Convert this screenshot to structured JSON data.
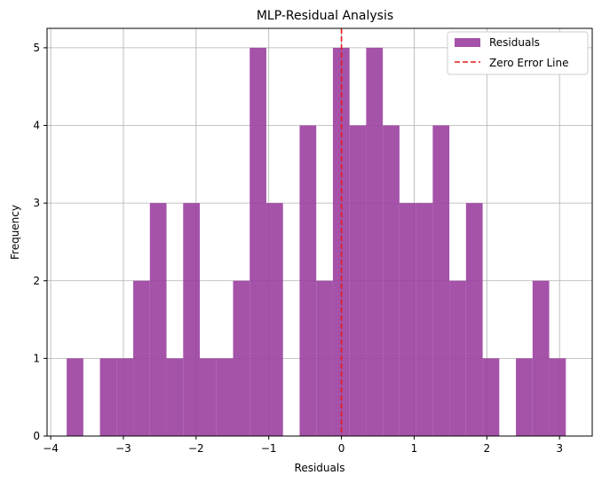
{
  "chart_data": {
    "type": "bar",
    "title": "MLP-Residual Analysis",
    "xlabel": "Residuals",
    "ylabel": "Frequency",
    "xlim": [
      -4.05,
      3.45
    ],
    "ylim": [
      0,
      5.25
    ],
    "xticks": [
      -4,
      -3,
      -2,
      -1,
      0,
      1,
      2,
      3
    ],
    "xtick_labels": [
      "−4",
      "−3",
      "−2",
      "−1",
      "0",
      "1",
      "2",
      "3"
    ],
    "yticks": [
      0,
      1,
      2,
      3,
      4,
      5
    ],
    "ytick_labels": [
      "0",
      "1",
      "2",
      "3",
      "4",
      "5"
    ],
    "grid": true,
    "legend_position": "top-right",
    "bin_start": -3.78,
    "bin_width": 0.2289,
    "series": [
      {
        "name": "Residuals",
        "color": "#9b3fa0",
        "values": [
          1,
          0,
          1,
          1,
          2,
          3,
          1,
          3,
          1,
          1,
          2,
          5,
          3,
          0,
          4,
          2,
          5,
          4,
          5,
          4,
          3,
          3,
          4,
          2,
          3,
          1,
          0,
          1,
          2,
          1
        ]
      }
    ],
    "reference_lines": [
      {
        "name": "Zero Error Line",
        "x": 0,
        "color": "#e41a1c",
        "style": "dashed"
      }
    ]
  }
}
